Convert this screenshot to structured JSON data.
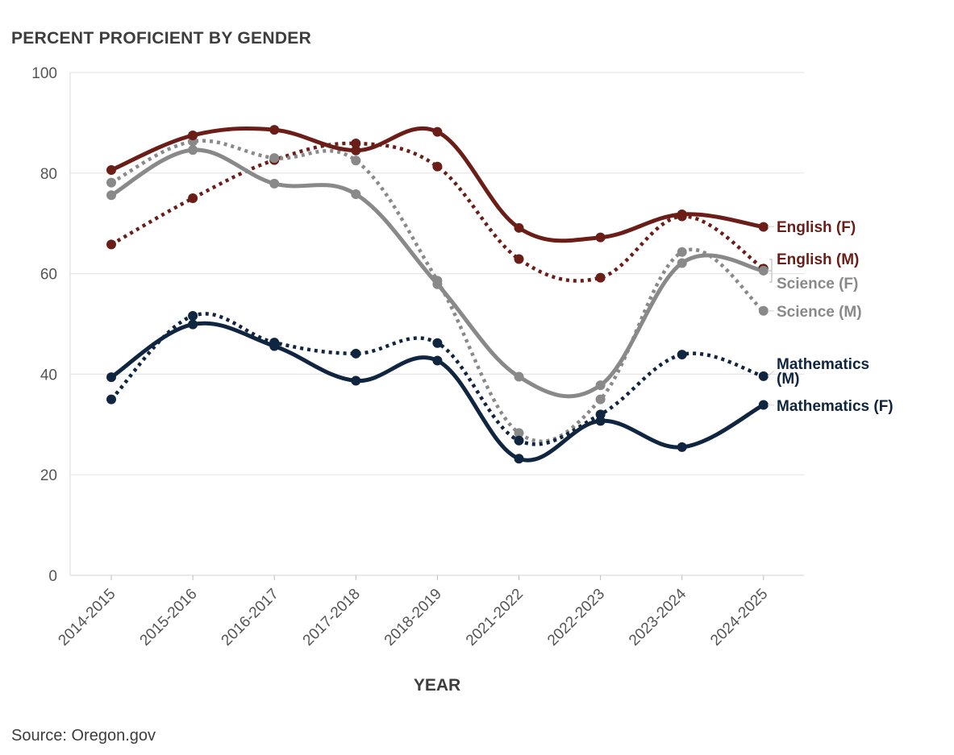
{
  "title": "PERCENT PROFICIENT BY GENDER",
  "source": "Source: Oregon.gov",
  "chart_data": {
    "type": "line",
    "title": "PERCENT PROFICIENT BY GENDER",
    "xlabel": "YEAR",
    "ylabel": "",
    "ylim": [
      0,
      100
    ],
    "yticks": [
      0,
      20,
      40,
      60,
      80,
      100
    ],
    "grid": "horizontal",
    "legend": "direct labels at right end of lines",
    "categories": [
      "2014-2015",
      "2015-2016",
      "2016-2017",
      "2017-2018",
      "2018-2019",
      "2021-2022",
      "2022-2023",
      "2023-2024",
      "2024-2025"
    ],
    "series": [
      {
        "name": "English (F)",
        "label_lines": [
          "English (F)"
        ],
        "color": "#6b1d17",
        "dashed": false,
        "values": [
          80.6,
          87.5,
          88.6,
          84.5,
          88.2,
          69.1,
          67.2,
          71.8,
          69.3
        ]
      },
      {
        "name": "English (M)",
        "label_lines": [
          "English (M)"
        ],
        "color": "#6b1d17",
        "dashed": true,
        "values": [
          65.8,
          75.0,
          82.6,
          85.9,
          81.3,
          62.9,
          59.2,
          71.4,
          61.0
        ]
      },
      {
        "name": "Science (F)",
        "label_lines": [
          "Science (F)"
        ],
        "color": "#898989",
        "dashed": false,
        "values": [
          75.6,
          84.6,
          77.9,
          75.8,
          57.9,
          39.5,
          37.8,
          62.1,
          60.6
        ]
      },
      {
        "name": "Science (M)",
        "label_lines": [
          "Science (M)"
        ],
        "color": "#898989",
        "dashed": true,
        "values": [
          78.1,
          86.3,
          83.0,
          82.5,
          58.6,
          28.3,
          35.0,
          64.3,
          52.6
        ]
      },
      {
        "name": "Mathematics (M)",
        "label_lines": [
          "Mathematics",
          "(M)"
        ],
        "color": "#10253f",
        "dashed": true,
        "values": [
          35.0,
          51.6,
          46.3,
          44.1,
          46.2,
          26.8,
          32.0,
          43.9,
          39.6
        ]
      },
      {
        "name": "Mathematics (F)",
        "label_lines": [
          "Mathematics (F)"
        ],
        "color": "#10253f",
        "dashed": false,
        "values": [
          39.4,
          49.9,
          45.6,
          38.7,
          42.7,
          23.2,
          30.7,
          25.5,
          33.9
        ]
      }
    ]
  }
}
